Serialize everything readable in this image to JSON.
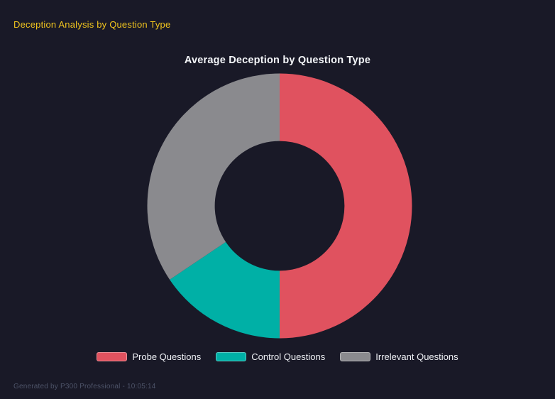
{
  "page": {
    "title": "Deception Analysis by Question Type",
    "footer": "Generated by P300 Professional - 10:05:14"
  },
  "colors": {
    "background": "#191927",
    "page_title": "#f0c41e",
    "chart_title": "#f4f6f9",
    "legend_text": "#eff1f5",
    "footer_text": "#4d5368"
  },
  "chart_data": {
    "type": "pie",
    "subtype": "doughnut",
    "title": "Average Deception by Question Type",
    "categories": [
      "Probe Questions",
      "Control Questions",
      "Irrelevant Questions"
    ],
    "values_percent": [
      50,
      15.6,
      34.4
    ],
    "colors": [
      "#e0525f",
      "#00b0a6",
      "#8a8a8e"
    ],
    "legend": {
      "position": "bottom"
    },
    "start_angle_deg": 0,
    "direction": "clockwise",
    "inner_radius_ratio": 0.49,
    "grid": false
  }
}
